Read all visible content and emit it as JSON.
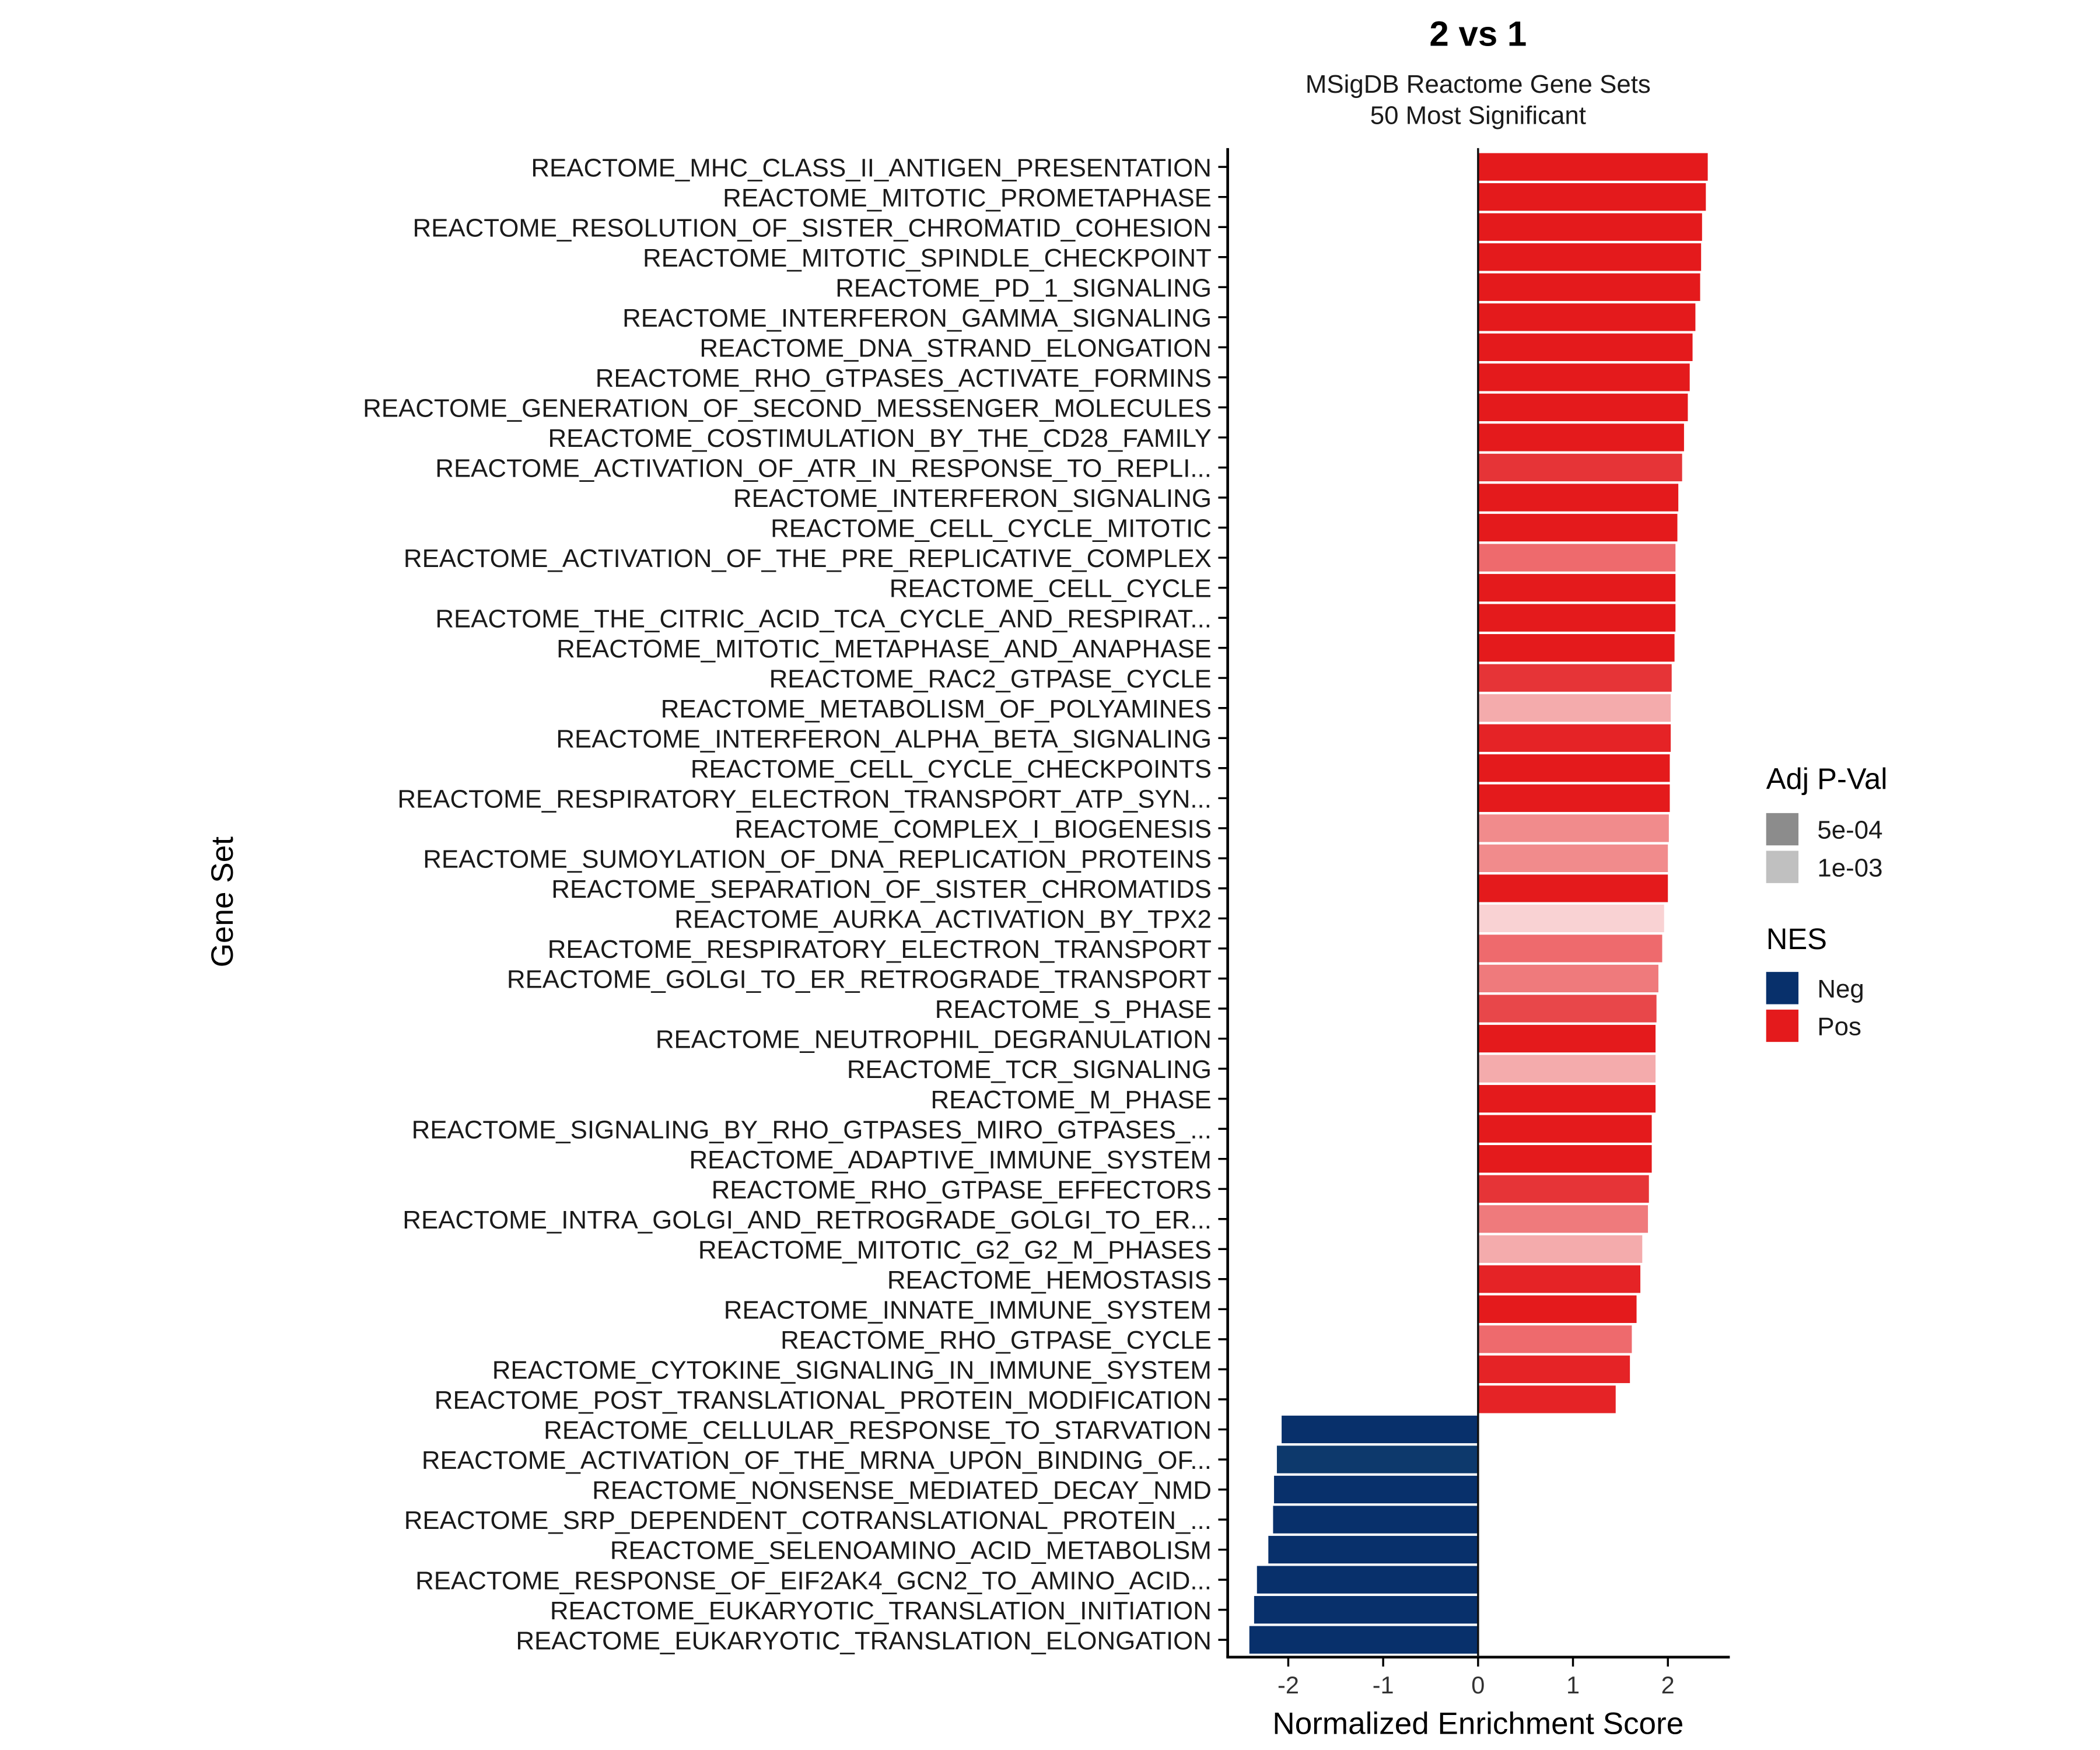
{
  "chart_data": {
    "type": "bar",
    "orientation": "horizontal",
    "title": "2 vs 1",
    "subtitle_lines": [
      "MSigDB Reactome Gene Sets",
      "50 Most Significant"
    ],
    "xlabel": "Normalized Enrichment Score",
    "ylabel": "Gene Set",
    "xlim": [
      -2.65,
      2.65
    ],
    "xticks": [
      -2,
      -1,
      0,
      1,
      2
    ],
    "xtick_labels": [
      "-2",
      "-1",
      "0",
      "1",
      "2"
    ],
    "categories": [
      "REACTOME_MHC_CLASS_II_ANTIGEN_PRESENTATION",
      "REACTOME_MITOTIC_PROMETAPHASE",
      "REACTOME_RESOLUTION_OF_SISTER_CHROMATID_COHESION",
      "REACTOME_MITOTIC_SPINDLE_CHECKPOINT",
      "REACTOME_PD_1_SIGNALING",
      "REACTOME_INTERFERON_GAMMA_SIGNALING",
      "REACTOME_DNA_STRAND_ELONGATION",
      "REACTOME_RHO_GTPASES_ACTIVATE_FORMINS",
      "REACTOME_GENERATION_OF_SECOND_MESSENGER_MOLECULES",
      "REACTOME_COSTIMULATION_BY_THE_CD28_FAMILY",
      "REACTOME_ACTIVATION_OF_ATR_IN_RESPONSE_TO_REPLI...",
      "REACTOME_INTERFERON_SIGNALING",
      "REACTOME_CELL_CYCLE_MITOTIC",
      "REACTOME_ACTIVATION_OF_THE_PRE_REPLICATIVE_COMPLEX",
      "REACTOME_CELL_CYCLE",
      "REACTOME_THE_CITRIC_ACID_TCA_CYCLE_AND_RESPIRAT...",
      "REACTOME_MITOTIC_METAPHASE_AND_ANAPHASE",
      "REACTOME_RAC2_GTPASE_CYCLE",
      "REACTOME_METABOLISM_OF_POLYAMINES",
      "REACTOME_INTERFERON_ALPHA_BETA_SIGNALING",
      "REACTOME_CELL_CYCLE_CHECKPOINTS",
      "REACTOME_RESPIRATORY_ELECTRON_TRANSPORT_ATP_SYN...",
      "REACTOME_COMPLEX_I_BIOGENESIS",
      "REACTOME_SUMOYLATION_OF_DNA_REPLICATION_PROTEINS",
      "REACTOME_SEPARATION_OF_SISTER_CHROMATIDS",
      "REACTOME_AURKA_ACTIVATION_BY_TPX2",
      "REACTOME_RESPIRATORY_ELECTRON_TRANSPORT",
      "REACTOME_GOLGI_TO_ER_RETROGRADE_TRANSPORT",
      "REACTOME_S_PHASE",
      "REACTOME_NEUTROPHIL_DEGRANULATION",
      "REACTOME_TCR_SIGNALING",
      "REACTOME_M_PHASE",
      "REACTOME_SIGNALING_BY_RHO_GTPASES_MIRO_GTPASES_...",
      "REACTOME_ADAPTIVE_IMMUNE_SYSTEM",
      "REACTOME_RHO_GTPASE_EFFECTORS",
      "REACTOME_INTRA_GOLGI_AND_RETROGRADE_GOLGI_TO_ER...",
      "REACTOME_MITOTIC_G2_G2_M_PHASES",
      "REACTOME_HEMOSTASIS",
      "REACTOME_INNATE_IMMUNE_SYSTEM",
      "REACTOME_RHO_GTPASE_CYCLE",
      "REACTOME_CYTOKINE_SIGNALING_IN_IMMUNE_SYSTEM",
      "REACTOME_POST_TRANSLATIONAL_PROTEIN_MODIFICATION",
      "REACTOME_CELLULAR_RESPONSE_TO_STARVATION",
      "REACTOME_ACTIVATION_OF_THE_MRNA_UPON_BINDING_OF...",
      "REACTOME_NONSENSE_MEDIATED_DECAY_NMD",
      "REACTOME_SRP_DEPENDENT_COTRANSLATIONAL_PROTEIN_...",
      "REACTOME_SELENOAMINO_ACID_METABOLISM",
      "REACTOME_RESPONSE_OF_EIF2AK4_GCN2_TO_AMINO_ACID...",
      "REACTOME_EUKARYOTIC_TRANSLATION_INITIATION",
      "REACTOME_EUKARYOTIC_TRANSLATION_ELONGATION"
    ],
    "values": [
      2.42,
      2.4,
      2.36,
      2.35,
      2.34,
      2.29,
      2.26,
      2.23,
      2.21,
      2.17,
      2.15,
      2.11,
      2.1,
      2.08,
      2.08,
      2.08,
      2.07,
      2.04,
      2.03,
      2.03,
      2.02,
      2.02,
      2.01,
      2.0,
      2.0,
      1.96,
      1.94,
      1.9,
      1.88,
      1.87,
      1.87,
      1.87,
      1.83,
      1.83,
      1.8,
      1.79,
      1.73,
      1.71,
      1.67,
      1.62,
      1.6,
      1.45,
      -2.07,
      -2.12,
      -2.15,
      -2.16,
      -2.21,
      -2.33,
      -2.36,
      -2.41
    ],
    "colors": [
      "#E41A1C",
      "#E41A1C",
      "#E41A1C",
      "#E41A1C",
      "#E41A1C",
      "#E41A1C",
      "#E41A1C",
      "#E41A1C",
      "#E41A1C",
      "#E41A1C",
      "#E63437",
      "#E41A1C",
      "#E41A1C",
      "#EE6A6D",
      "#E41A1C",
      "#E41A1C",
      "#E41A1C",
      "#E63437",
      "#F4ABAC",
      "#E52326",
      "#E41A1C",
      "#E41A1C",
      "#F18B8C",
      "#F18B8C",
      "#E41A1C",
      "#F9D2D3",
      "#EE6A6D",
      "#EF7A7C",
      "#E8474A",
      "#E41A1C",
      "#F4ABAC",
      "#E41A1C",
      "#E41A1C",
      "#E41A1C",
      "#E63437",
      "#EF7A7C",
      "#F4ABAC",
      "#E52326",
      "#E41A1C",
      "#EE6A6D",
      "#E52326",
      "#E52326",
      "#08306B",
      "#0D396C",
      "#08306B",
      "#08306B",
      "#08306B",
      "#08306B",
      "#08306B",
      "#08306B"
    ],
    "legend": [
      {
        "title": "Adj P-Val",
        "entries": [
          {
            "label": "5e-04",
            "color": "#8C8C8C"
          },
          {
            "label": "1e-03",
            "color": "#C0C0C0"
          }
        ]
      },
      {
        "title": "NES",
        "entries": [
          {
            "label": "Neg",
            "color": "#08306B"
          },
          {
            "label": "Pos",
            "color": "#E41A1C"
          }
        ]
      }
    ],
    "legend_position": "right",
    "grid": false
  }
}
